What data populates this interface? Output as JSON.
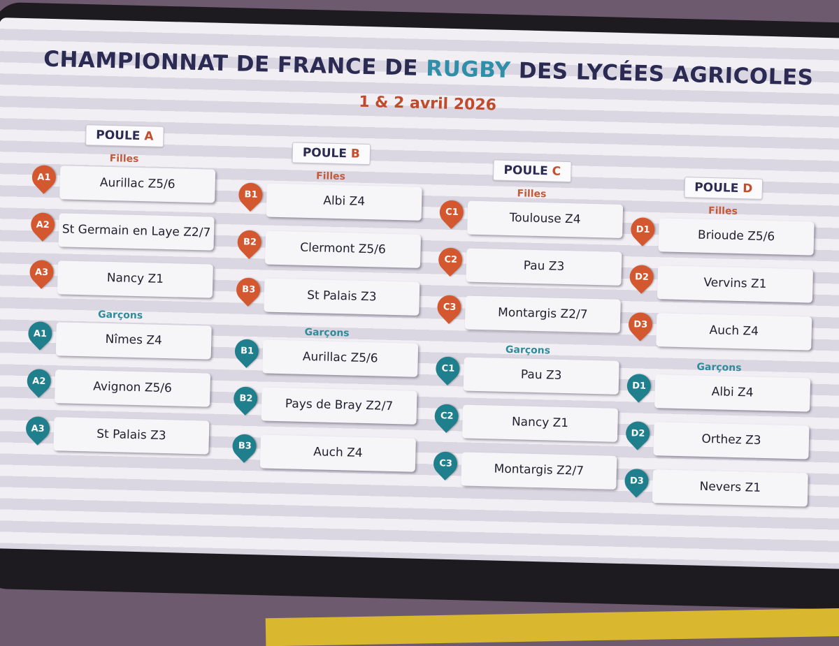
{
  "title_part1": "CHAMPIONNAT DE FRANCE DE ",
  "title_accent": "RUGBY",
  "title_part2": " DES LYCÉES AGRICOLES",
  "date": "1 & 2 avril 2026",
  "poules": [
    {
      "label": "POULE",
      "letter": "A",
      "girls_label": "Filles",
      "girls": [
        {
          "code": "A1",
          "team": "Aurillac Z5/6"
        },
        {
          "code": "A2",
          "team": "St Germain en Laye Z2/7"
        },
        {
          "code": "A3",
          "team": "Nancy Z1"
        }
      ],
      "boys_label": "Garçons",
      "boys": [
        {
          "code": "A1",
          "team": "Nîmes Z4"
        },
        {
          "code": "A2",
          "team": "Avignon Z5/6"
        },
        {
          "code": "A3",
          "team": "St Palais Z3"
        }
      ]
    },
    {
      "label": "POULE",
      "letter": "B",
      "girls_label": "Filles",
      "girls": [
        {
          "code": "B1",
          "team": "Albi Z4"
        },
        {
          "code": "B2",
          "team": "Clermont Z5/6"
        },
        {
          "code": "B3",
          "team": "St Palais Z3"
        }
      ],
      "boys_label": "Garçons",
      "boys": [
        {
          "code": "B1",
          "team": "Aurillac Z5/6"
        },
        {
          "code": "B2",
          "team": "Pays de Bray Z2/7"
        },
        {
          "code": "B3",
          "team": "Auch Z4"
        }
      ]
    },
    {
      "label": "POULE",
      "letter": "C",
      "girls_label": "Filles",
      "girls": [
        {
          "code": "C1",
          "team": "Toulouse Z4"
        },
        {
          "code": "C2",
          "team": "Pau Z3"
        },
        {
          "code": "C3",
          "team": "Montargis Z2/7"
        }
      ],
      "boys_label": "Garçons",
      "boys": [
        {
          "code": "C1",
          "team": "Pau Z3"
        },
        {
          "code": "C2",
          "team": "Nancy Z1"
        },
        {
          "code": "C3",
          "team": "Montargis Z2/7"
        }
      ]
    },
    {
      "label": "POULE",
      "letter": "D",
      "girls_label": "Filles",
      "girls": [
        {
          "code": "D1",
          "team": "Brioude Z5/6"
        },
        {
          "code": "D2",
          "team": "Vervins Z1"
        },
        {
          "code": "D3",
          "team": "Auch Z4"
        }
      ],
      "boys_label": "Garçons",
      "boys": [
        {
          "code": "D1",
          "team": "Albi Z4"
        },
        {
          "code": "D2",
          "team": "Orthez Z3"
        },
        {
          "code": "D3",
          "team": "Nevers Z1"
        }
      ]
    }
  ]
}
